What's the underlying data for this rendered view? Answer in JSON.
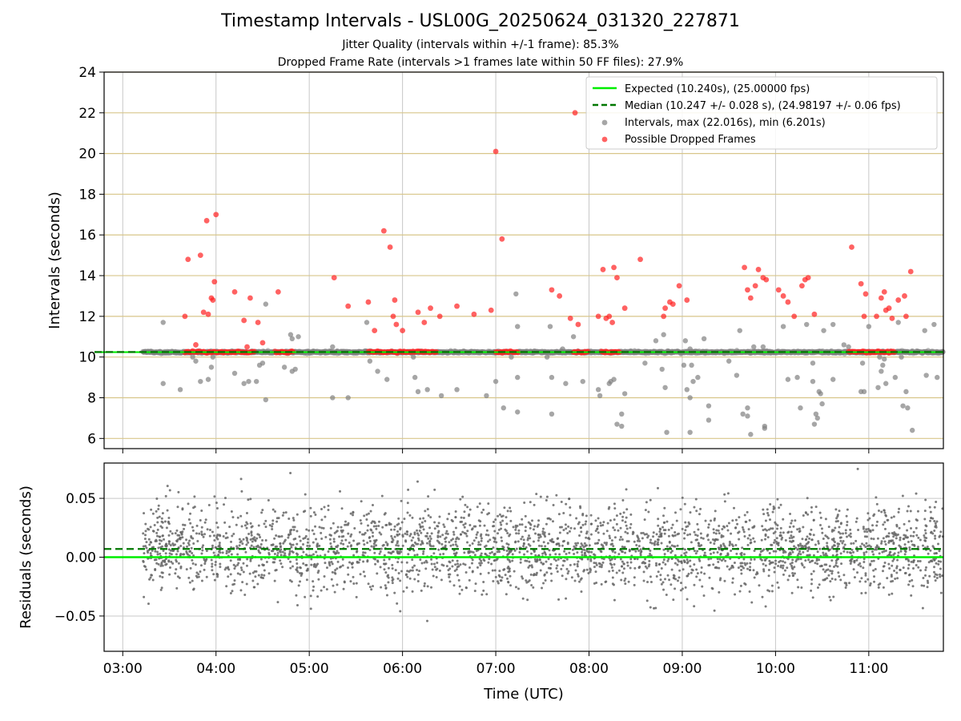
{
  "page": {
    "title": "Timestamp Intervals - USL00G_20250624_031320_227871",
    "subtitle_1": "Jitter Quality (intervals within +/-1 frame): 85.3%",
    "subtitle_2": "Dropped Frame Rate (intervals >1 frames late within 50 FF files): 27.9%"
  },
  "colors": {
    "expected": "#00ee00",
    "median": "#007700",
    "intervals": "#808080",
    "dropped": "#ff2020",
    "top_grid": "#d8c68a",
    "bottom_grid": "#c8c8c8"
  },
  "chart_data": [
    {
      "type": "scatter",
      "panel": "top",
      "xlabel": "",
      "ylabel": "Intervals (seconds)",
      "xlim_hours": [
        2.8,
        11.8
      ],
      "ylim": [
        5.5,
        24
      ],
      "yticks": [
        6,
        8,
        10,
        12,
        14,
        16,
        18,
        20,
        22,
        24
      ],
      "grid": "horizontal",
      "legend_position": "top-right",
      "legend": [
        {
          "label": "Expected (10.240s), (25.00000 fps)",
          "kind": "line-solid",
          "color": "#00ee00"
        },
        {
          "label": "Median (10.247 +/- 0.028 s), (24.98197 +/- 0.06 fps)",
          "kind": "line-dashed",
          "color": "#007700"
        },
        {
          "label": "Intervals, max (22.016s), min (6.201s)",
          "kind": "dot",
          "color": "#808080"
        },
        {
          "label": "Possible Dropped Frames",
          "kind": "dot",
          "color": "#ff2020"
        }
      ],
      "expected_value": 10.24,
      "median_value": 10.247,
      "baseline_band": {
        "x_start": "03:13",
        "x_end": "11:48",
        "y": 10.24
      },
      "dropped_clusters": [
        {
          "x_start": "03:40",
          "x_end": "04:25",
          "y": 10.25
        },
        {
          "x_start": "04:38",
          "x_end": "04:50",
          "y": 10.25
        },
        {
          "x_start": "05:38",
          "x_end": "06:22",
          "y": 10.25
        },
        {
          "x_start": "07:00",
          "x_end": "07:15",
          "y": 10.25
        },
        {
          "x_start": "07:50",
          "x_end": "08:00",
          "y": 10.25
        },
        {
          "x_start": "08:08",
          "x_end": "08:20",
          "y": 10.25
        },
        {
          "x_start": "10:47",
          "x_end": "11:17",
          "y": 10.25
        }
      ],
      "dropped_frames": [
        [
          "03:40",
          12.0
        ],
        [
          "03:42",
          14.8
        ],
        [
          "03:47",
          10.6
        ],
        [
          "03:50",
          15.0
        ],
        [
          "03:52",
          12.2
        ],
        [
          "03:54",
          16.7
        ],
        [
          "03:55",
          12.1
        ],
        [
          "03:57",
          12.9
        ],
        [
          "03:58",
          12.8
        ],
        [
          "03:59",
          13.7
        ],
        [
          "04:00",
          17.0
        ],
        [
          "04:12",
          13.2
        ],
        [
          "04:18",
          11.8
        ],
        [
          "04:20",
          10.5
        ],
        [
          "04:22",
          12.9
        ],
        [
          "04:27",
          11.7
        ],
        [
          "04:30",
          10.7
        ],
        [
          "04:40",
          13.2
        ],
        [
          "05:16",
          13.9
        ],
        [
          "05:25",
          12.5
        ],
        [
          "05:38",
          12.7
        ],
        [
          "05:42",
          11.3
        ],
        [
          "05:48",
          16.2
        ],
        [
          "05:52",
          15.4
        ],
        [
          "05:54",
          12.0
        ],
        [
          "05:55",
          12.8
        ],
        [
          "05:56",
          11.6
        ],
        [
          "06:00",
          11.3
        ],
        [
          "06:10",
          12.2
        ],
        [
          "06:14",
          11.7
        ],
        [
          "06:18",
          12.4
        ],
        [
          "06:24",
          12.0
        ],
        [
          "06:35",
          12.5
        ],
        [
          "06:46",
          12.1
        ],
        [
          "06:57",
          12.3
        ],
        [
          "07:00",
          20.1
        ],
        [
          "07:04",
          15.8
        ],
        [
          "07:36",
          13.3
        ],
        [
          "07:41",
          13.0
        ],
        [
          "07:48",
          11.9
        ],
        [
          "07:51",
          22.0
        ],
        [
          "07:53",
          11.6
        ],
        [
          "08:06",
          12.0
        ],
        [
          "08:09",
          14.3
        ],
        [
          "08:11",
          11.9
        ],
        [
          "08:13",
          12.0
        ],
        [
          "08:15",
          11.7
        ],
        [
          "08:16",
          14.4
        ],
        [
          "08:18",
          13.9
        ],
        [
          "08:23",
          12.4
        ],
        [
          "08:33",
          14.8
        ],
        [
          "08:48",
          12.0
        ],
        [
          "08:49",
          12.4
        ],
        [
          "08:52",
          12.7
        ],
        [
          "08:54",
          12.6
        ],
        [
          "08:58",
          13.5
        ],
        [
          "09:03",
          12.8
        ],
        [
          "09:40",
          14.4
        ],
        [
          "09:42",
          13.3
        ],
        [
          "09:44",
          12.9
        ],
        [
          "09:47",
          13.5
        ],
        [
          "09:49",
          14.3
        ],
        [
          "09:52",
          13.9
        ],
        [
          "09:54",
          13.8
        ],
        [
          "10:02",
          13.3
        ],
        [
          "10:05",
          13.0
        ],
        [
          "10:08",
          12.7
        ],
        [
          "10:12",
          12.0
        ],
        [
          "10:17",
          13.5
        ],
        [
          "10:19",
          13.8
        ],
        [
          "10:21",
          13.9
        ],
        [
          "10:25",
          12.1
        ],
        [
          "10:49",
          15.4
        ],
        [
          "10:55",
          13.6
        ],
        [
          "10:57",
          12.0
        ],
        [
          "10:58",
          13.1
        ],
        [
          "11:05",
          12.0
        ],
        [
          "11:08",
          12.9
        ],
        [
          "11:10",
          13.2
        ],
        [
          "11:11",
          12.3
        ],
        [
          "11:13",
          12.4
        ],
        [
          "11:15",
          11.9
        ],
        [
          "11:19",
          12.8
        ],
        [
          "11:23",
          13.0
        ],
        [
          "11:24",
          12.0
        ],
        [
          "11:27",
          14.2
        ]
      ],
      "intervals": [
        [
          "03:26",
          11.7
        ],
        [
          "03:26",
          8.7
        ],
        [
          "03:37",
          8.4
        ],
        [
          "03:47",
          9.8
        ],
        [
          "03:50",
          8.8
        ],
        [
          "03:55",
          8.9
        ],
        [
          "03:57",
          9.5
        ],
        [
          "03:45",
          10.0
        ],
        [
          "04:12",
          9.2
        ],
        [
          "04:18",
          8.7
        ],
        [
          "04:21",
          8.8
        ],
        [
          "04:26",
          8.8
        ],
        [
          "04:28",
          9.6
        ],
        [
          "04:30",
          9.7
        ],
        [
          "04:32",
          12.6
        ],
        [
          "04:32",
          7.9
        ],
        [
          "04:44",
          9.5
        ],
        [
          "04:49",
          9.3
        ],
        [
          "04:48",
          11.1
        ],
        [
          "04:49",
          10.9
        ],
        [
          "04:51",
          9.4
        ],
        [
          "04:53",
          11.0
        ],
        [
          "05:15",
          10.5
        ],
        [
          "05:15",
          8.0
        ],
        [
          "05:25",
          8.0
        ],
        [
          "05:37",
          11.7
        ],
        [
          "05:39",
          9.8
        ],
        [
          "05:44",
          9.3
        ],
        [
          "05:50",
          8.9
        ],
        [
          "06:08",
          9.0
        ],
        [
          "06:10",
          8.3
        ],
        [
          "06:16",
          8.4
        ],
        [
          "06:25",
          8.1
        ],
        [
          "06:35",
          8.4
        ],
        [
          "06:54",
          8.1
        ],
        [
          "07:00",
          8.8
        ],
        [
          "07:05",
          7.5
        ],
        [
          "07:10",
          10.0
        ],
        [
          "07:14",
          11.5
        ],
        [
          "07:14",
          9.0
        ],
        [
          "07:13",
          13.1
        ],
        [
          "07:14",
          7.3
        ],
        [
          "07:25",
          10.3
        ],
        [
          "07:33",
          10.0
        ],
        [
          "07:35",
          11.5
        ],
        [
          "07:36",
          9.0
        ],
        [
          "07:36",
          7.2
        ],
        [
          "07:43",
          10.4
        ],
        [
          "07:45",
          8.7
        ],
        [
          "07:50",
          11.0
        ],
        [
          "07:56",
          8.8
        ],
        [
          "08:06",
          8.4
        ],
        [
          "08:07",
          8.1
        ],
        [
          "08:13",
          8.7
        ],
        [
          "08:14",
          8.8
        ],
        [
          "08:14",
          10.2
        ],
        [
          "08:16",
          8.9
        ],
        [
          "08:18",
          6.7
        ],
        [
          "08:21",
          7.2
        ],
        [
          "08:21",
          6.6
        ],
        [
          "08:23",
          8.2
        ],
        [
          "08:27",
          10.3
        ],
        [
          "08:36",
          9.7
        ],
        [
          "08:43",
          10.8
        ],
        [
          "08:47",
          9.4
        ],
        [
          "08:48",
          11.1
        ],
        [
          "08:49",
          8.5
        ],
        [
          "08:50",
          6.3
        ],
        [
          "08:53",
          10.2
        ],
        [
          "09:01",
          9.6
        ],
        [
          "09:02",
          10.8
        ],
        [
          "09:03",
          8.4
        ],
        [
          "09:06",
          9.6
        ],
        [
          "09:05",
          10.4
        ],
        [
          "09:05",
          6.3
        ],
        [
          "09:05",
          8.0
        ],
        [
          "09:07",
          8.8
        ],
        [
          "09:10",
          9.0
        ],
        [
          "09:14",
          10.9
        ],
        [
          "09:17",
          7.6
        ],
        [
          "09:17",
          6.9
        ],
        [
          "09:30",
          9.8
        ],
        [
          "09:35",
          9.1
        ],
        [
          "09:37",
          11.3
        ],
        [
          "09:39",
          7.2
        ],
        [
          "09:42",
          7.5
        ],
        [
          "09:42",
          7.1
        ],
        [
          "09:44",
          6.2
        ],
        [
          "09:52",
          10.5
        ],
        [
          "09:53",
          6.6
        ],
        [
          "09:53",
          6.5
        ],
        [
          "10:05",
          11.5
        ],
        [
          "10:08",
          8.9
        ],
        [
          "10:14",
          9.0
        ],
        [
          "10:16",
          7.5
        ],
        [
          "10:20",
          11.6
        ],
        [
          "10:24",
          8.8
        ],
        [
          "10:27",
          7.0
        ],
        [
          "10:26",
          7.2
        ],
        [
          "10:31",
          11.3
        ],
        [
          "10:30",
          7.7
        ],
        [
          "10:24",
          9.7
        ],
        [
          "10:37",
          8.9
        ],
        [
          "10:25",
          6.7
        ],
        [
          "10:28",
          8.3
        ],
        [
          "10:29",
          8.2
        ],
        [
          "10:37",
          11.6
        ],
        [
          "10:44",
          10.6
        ],
        [
          "10:55",
          8.3
        ],
        [
          "10:56",
          9.7
        ],
        [
          "10:57",
          8.3
        ],
        [
          "11:00",
          11.5
        ],
        [
          "11:06",
          8.5
        ],
        [
          "11:07",
          10.0
        ],
        [
          "11:08",
          9.3
        ],
        [
          "11:09",
          9.6
        ],
        [
          "11:10",
          9.9
        ],
        [
          "11:11",
          8.7
        ],
        [
          "11:17",
          9.0
        ],
        [
          "11:19",
          11.7
        ],
        [
          "11:21",
          10.0
        ],
        [
          "11:22",
          7.6
        ],
        [
          "11:25",
          7.5
        ],
        [
          "11:24",
          8.3
        ],
        [
          "11:28",
          6.4
        ],
        [
          "11:31",
          10.3
        ],
        [
          "11:36",
          11.3
        ],
        [
          "11:37",
          9.1
        ],
        [
          "11:42",
          11.6
        ],
        [
          "11:44",
          9.0
        ],
        [
          "11:28",
          10.3
        ],
        [
          "03:58",
          10.0
        ],
        [
          "05:18",
          10.3
        ],
        [
          "06:07",
          10.0
        ],
        [
          "09:46",
          10.5
        ],
        [
          "10:47",
          10.5
        ]
      ]
    },
    {
      "type": "scatter",
      "panel": "bottom",
      "xlabel": "Time (UTC)",
      "ylabel": "Residuals (seconds)",
      "xlim_hours": [
        2.8,
        11.8
      ],
      "ylim": [
        -0.08,
        0.08
      ],
      "yticks": [
        0.05,
        0.0,
        -0.05
      ],
      "ytick_labels": [
        "0.05",
        "0.00",
        "−0.05"
      ],
      "xticks": [
        "03:00",
        "04:00",
        "05:00",
        "06:00",
        "07:00",
        "08:00",
        "09:00",
        "10:00",
        "11:00"
      ],
      "grid": "both",
      "expected_value": 0.0,
      "median_value": 0.007,
      "residuals_summary": {
        "x_start": "03:13",
        "x_end": "11:48",
        "count": 3000,
        "mean": 0.007,
        "std": 0.018
      }
    }
  ]
}
